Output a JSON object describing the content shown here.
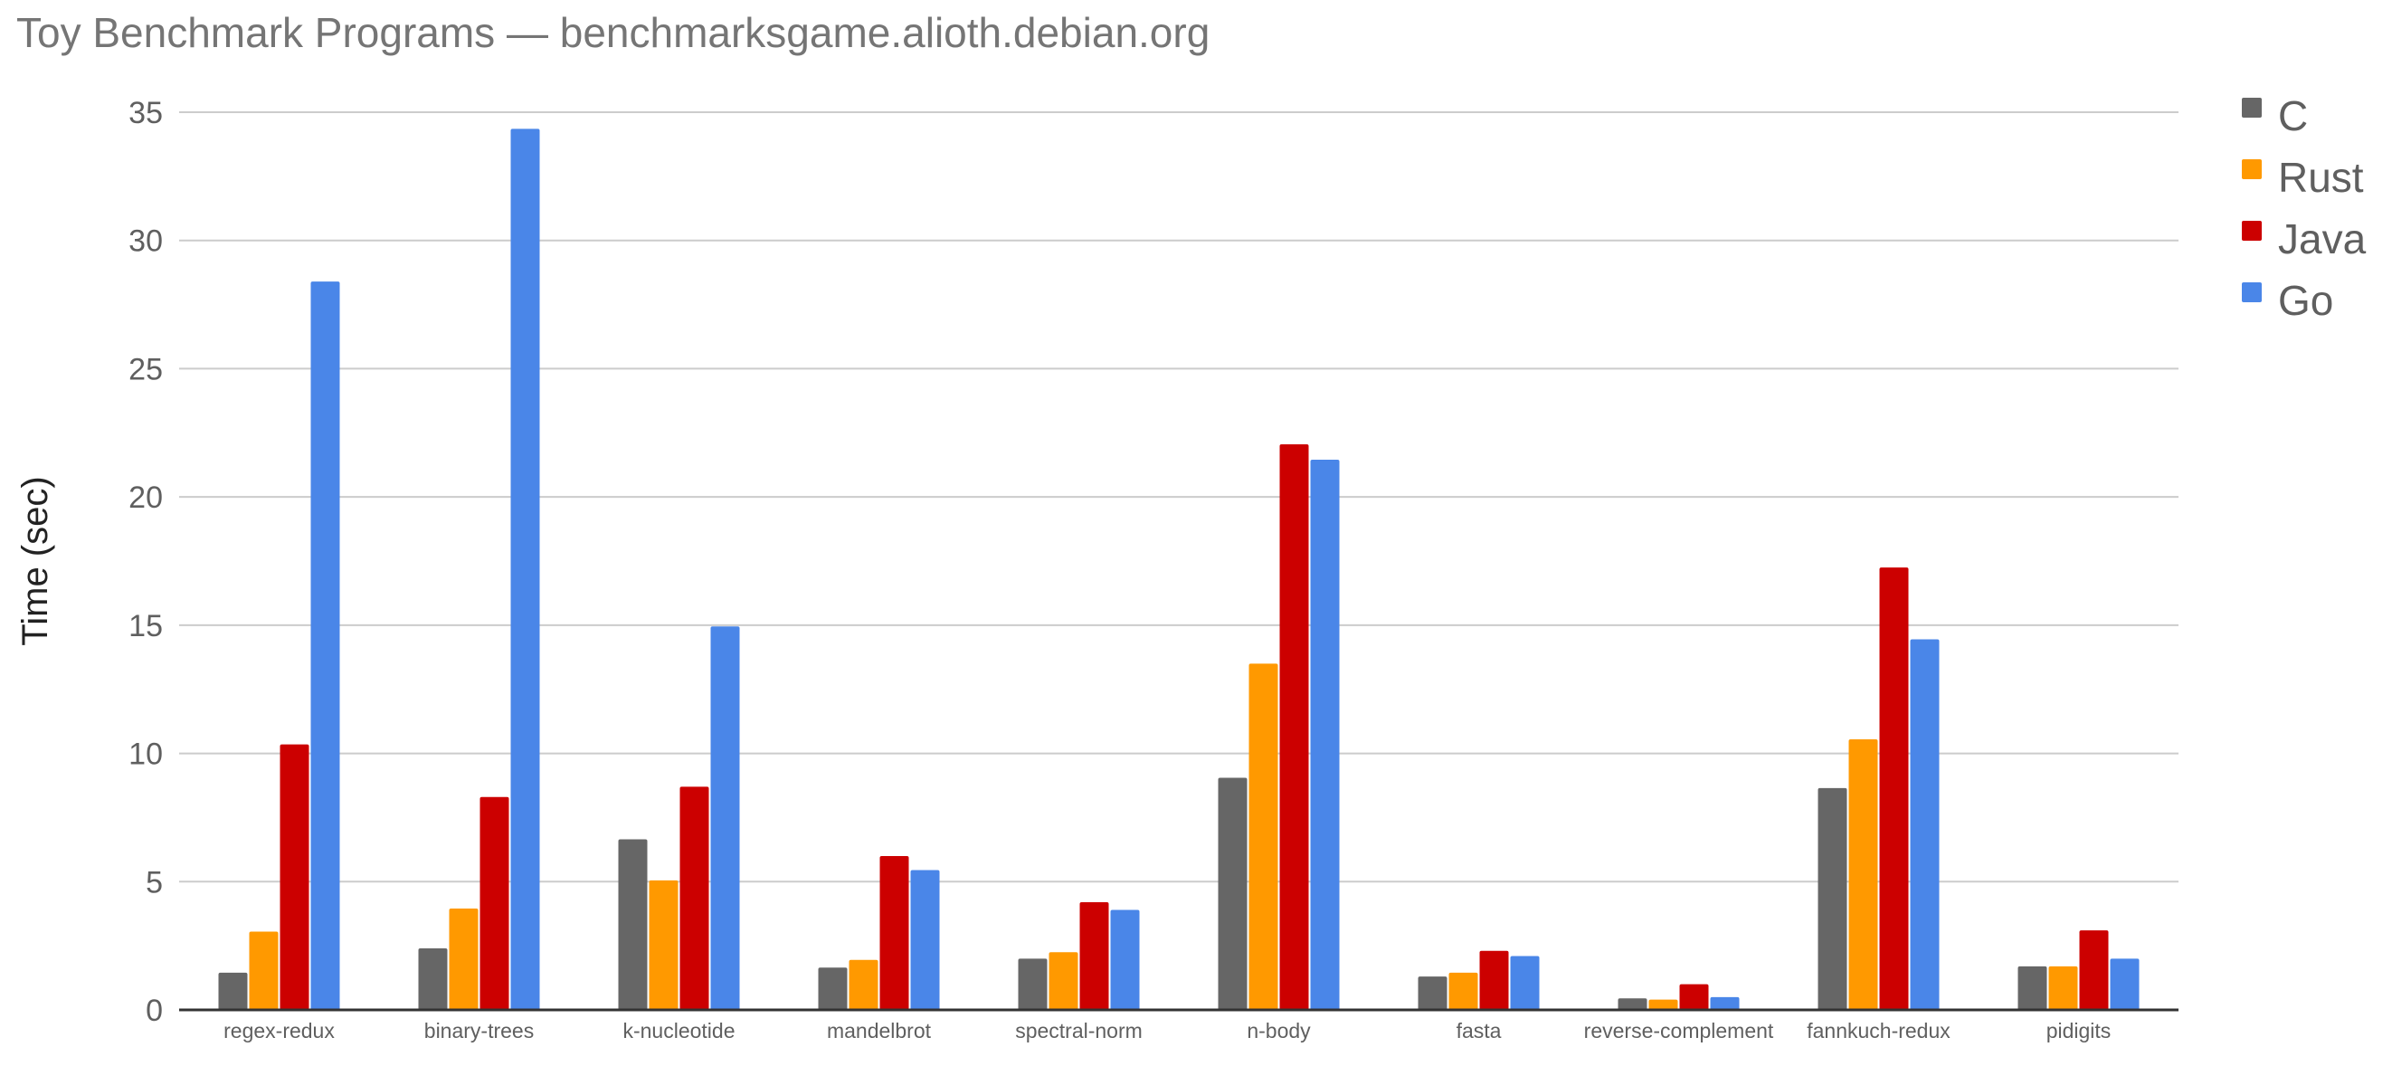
{
  "chart_data": {
    "type": "bar",
    "title": "Toy Benchmark Programs — benchmarksgame.alioth.debian.org",
    "xlabel": "",
    "ylabel": "Time (sec)",
    "ylim": [
      0,
      35
    ],
    "yticks": [
      "0",
      "5",
      "10",
      "15",
      "20",
      "25",
      "30",
      "35"
    ],
    "grid": true,
    "legend_position": "right",
    "categories": [
      "regex-redux",
      "binary-trees",
      "k-nucleotide",
      "mandelbrot",
      "spectral-norm",
      "n-body",
      "fasta",
      "reverse-complement",
      "fannkuch-redux",
      "pidigits"
    ],
    "series": [
      {
        "name": "C",
        "color": "#666666",
        "values": [
          1.45,
          2.4,
          6.65,
          1.65,
          2.0,
          9.05,
          1.3,
          0.45,
          8.65,
          1.7
        ]
      },
      {
        "name": "Rust",
        "color": "#ff9900",
        "values": [
          3.05,
          3.95,
          5.05,
          1.95,
          2.25,
          13.5,
          1.45,
          0.4,
          10.55,
          1.7
        ]
      },
      {
        "name": "Java",
        "color": "#cc0000",
        "values": [
          10.35,
          8.3,
          8.7,
          6.0,
          4.2,
          22.05,
          2.3,
          1.0,
          17.25,
          3.1
        ]
      },
      {
        "name": "Go",
        "color": "#4a86e8",
        "values": [
          28.4,
          34.35,
          14.95,
          5.45,
          3.9,
          21.45,
          2.1,
          0.5,
          14.45,
          2.0
        ]
      }
    ]
  }
}
